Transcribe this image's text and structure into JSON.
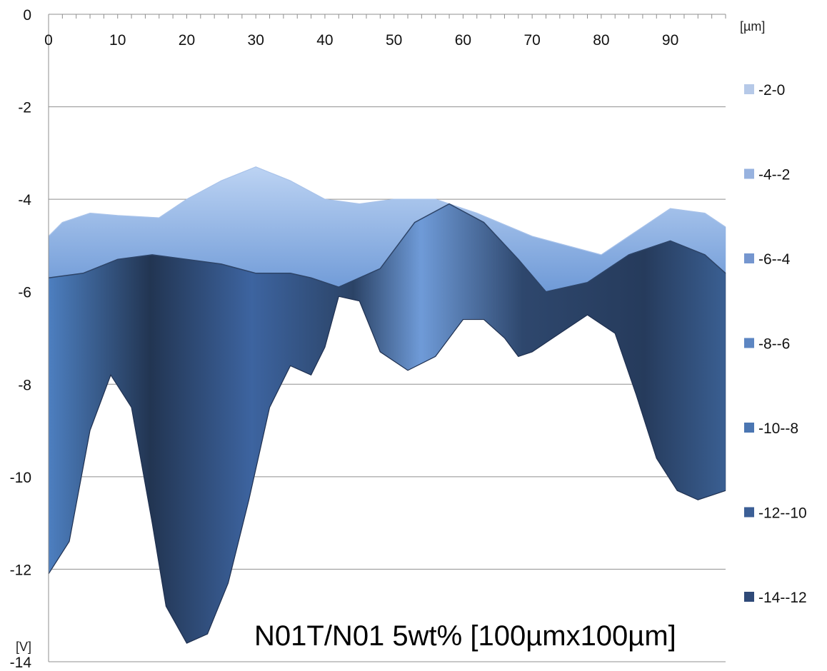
{
  "chart_data": {
    "type": "area",
    "x_unit": "[µm]",
    "y_unit": "[V]",
    "annotation": "N01T/N01 5wt% [100µmx100µm]",
    "xlim": [
      0,
      98
    ],
    "ylim": [
      -14,
      0
    ],
    "x_ticks": [
      0,
      10,
      20,
      30,
      40,
      50,
      60,
      70,
      80,
      90
    ],
    "x_tick_labels": [
      "0",
      "10",
      "20",
      "30",
      "40",
      "50",
      "60",
      "70",
      "80",
      "90"
    ],
    "y_ticks": [
      0,
      -2,
      -4,
      -6,
      -8,
      -10,
      -12,
      -14
    ],
    "y_tick_labels": [
      "0",
      "-2",
      "-4",
      "-6",
      "-8",
      "-10",
      "-12",
      "-14"
    ],
    "grid": true,
    "legend_position": "right",
    "bands": [
      {
        "label": "-2-0",
        "color": "#b6c9e8"
      },
      {
        "label": "-4--2",
        "color": "#97b2df"
      },
      {
        "label": "-6--4",
        "color": "#7596cf"
      },
      {
        "label": "-8--6",
        "color": "#5d86c2"
      },
      {
        "label": "-10--8",
        "color": "#4b76b2"
      },
      {
        "label": "-12--10",
        "color": "#3c5f96"
      },
      {
        "label": "-14--12",
        "color": "#2f4a78"
      }
    ],
    "surface": {
      "back_ridge": {
        "x": [
          0,
          2,
          6,
          10,
          16,
          20,
          25,
          30,
          35,
          40,
          45,
          50,
          56,
          62,
          70,
          80,
          90,
          95,
          98
        ],
        "y": [
          -4.8,
          -4.5,
          -4.3,
          -4.35,
          -4.4,
          -4.0,
          -3.6,
          -3.3,
          -3.6,
          -4.0,
          -4.1,
          -4.0,
          -4.0,
          -4.3,
          -4.8,
          -5.2,
          -4.2,
          -4.3,
          -4.6
        ]
      },
      "mid_ridge": {
        "x": [
          0,
          5,
          10,
          15,
          20,
          25,
          30,
          35,
          38,
          42,
          48,
          53,
          58,
          63,
          68,
          72,
          78,
          84,
          90,
          95,
          98
        ],
        "y": [
          -5.7,
          -5.6,
          -5.3,
          -5.2,
          -5.3,
          -5.4,
          -5.6,
          -5.6,
          -5.7,
          -5.9,
          -5.5,
          -4.5,
          -4.1,
          -4.5,
          -5.3,
          -6.0,
          -5.8,
          -5.2,
          -4.9,
          -5.2,
          -5.6
        ]
      },
      "front_profile": {
        "x": [
          0,
          3,
          6,
          9,
          12,
          15,
          17,
          20,
          23,
          26,
          29,
          32,
          35,
          38,
          40,
          42,
          45,
          48,
          52,
          56,
          60,
          63,
          66,
          68,
          70,
          74,
          78,
          82,
          85,
          88,
          91,
          94,
          96,
          98
        ],
        "y": [
          -12.1,
          -11.4,
          -9.0,
          -7.8,
          -8.5,
          -11.0,
          -12.8,
          -13.6,
          -13.4,
          -12.3,
          -10.5,
          -8.5,
          -7.6,
          -7.8,
          -7.2,
          -6.1,
          -6.2,
          -7.3,
          -7.7,
          -7.4,
          -6.6,
          -6.6,
          -7.0,
          -7.4,
          -7.3,
          -6.9,
          -6.5,
          -6.9,
          -8.2,
          -9.6,
          -10.3,
          -10.5,
          -10.4,
          -10.3
        ]
      }
    }
  }
}
